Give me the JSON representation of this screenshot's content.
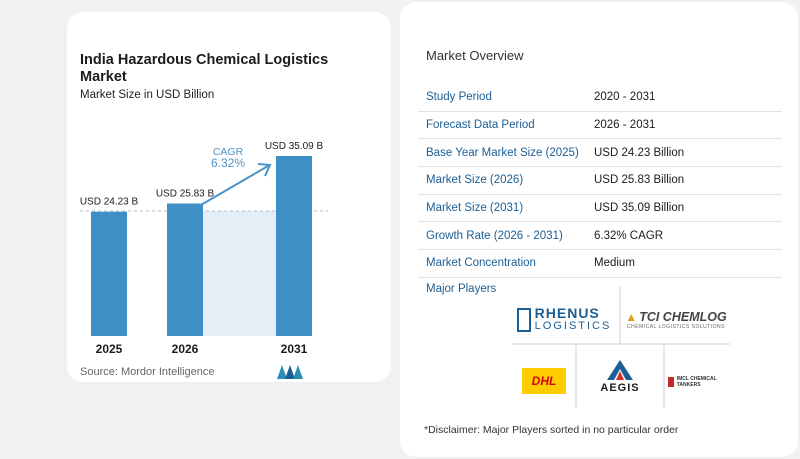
{
  "colors": {
    "bar": "#3d8fc6",
    "bar_light": "#e3eef7",
    "accent": "#1b5e94",
    "cagr": "#4e93c7"
  },
  "chart": {
    "title": "India Hazardous Chemical Logistics Market",
    "subtitle": "Market Size in USD Billion",
    "cagr_label": "CAGR",
    "cagr_value": "6.32%",
    "source": "Source:  Mordor Intelligence"
  },
  "chart_data": {
    "type": "bar",
    "categories": [
      "2025",
      "2026",
      "2031"
    ],
    "values": [
      24.23,
      25.83,
      35.09
    ],
    "data_labels": [
      "USD 24.23 B",
      "USD 25.83 B",
      "USD 35.09 B"
    ],
    "title": "India Hazardous Chemical Logistics Market",
    "subtitle": "Market Size in USD Billion",
    "annotation": "CAGR 6.32%",
    "ylim": [
      0,
      35.09
    ],
    "grid": false
  },
  "overview": {
    "title": "Market Overview",
    "rows": [
      {
        "label": "Study Period",
        "value": "2020 - 2031"
      },
      {
        "label": "Forecast Data Period",
        "value": "2026 - 2031"
      },
      {
        "label": "Base Year Market Size (2025)",
        "value": "USD 24.23 Billion"
      },
      {
        "label": "Market Size (2026)",
        "value": "USD 25.83 Billion"
      },
      {
        "label": "Market Size (2031)",
        "value": "USD 35.09 Billion"
      },
      {
        "label": "Growth Rate (2026 - 2031)",
        "value": "6.32% CAGR"
      },
      {
        "label": "Market Concentration",
        "value": "Medium"
      }
    ]
  },
  "players": {
    "title": "Major Players",
    "logos": {
      "rhenus_top": "RHENUS",
      "rhenus_bottom": "LOGISTICS",
      "tci_main": "TCI CHEMLOG",
      "tci_sub": "CHEMICAL LOGISTICS SOLUTIONS",
      "dhl": "DHL",
      "aegis": "AEGIS",
      "iocl": "IMCL CHEMICAL TANKERS"
    }
  },
  "disclaimer": "*Disclaimer: Major Players sorted in no particular order"
}
